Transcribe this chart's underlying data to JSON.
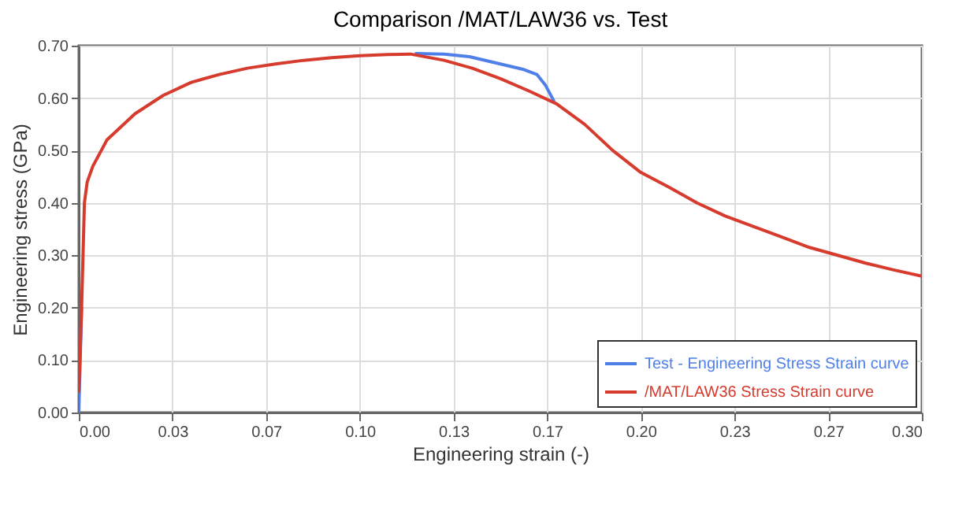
{
  "chart_data": {
    "type": "line",
    "title": "Comparison /MAT/LAW36 vs. Test",
    "xlabel": "Engineering strain (-)",
    "ylabel": "Engineering stress (GPa)",
    "xlim": [
      0,
      0.3
    ],
    "ylim": [
      0,
      0.7
    ],
    "xticks": [
      {
        "value": 0,
        "label": "0.00"
      },
      {
        "value": 0.03333,
        "label": "0.03"
      },
      {
        "value": 0.06667,
        "label": "0.07"
      },
      {
        "value": 0.1,
        "label": "0.10"
      },
      {
        "value": 0.13333,
        "label": "0.13"
      },
      {
        "value": 0.16667,
        "label": "0.17"
      },
      {
        "value": 0.2,
        "label": "0.20"
      },
      {
        "value": 0.23333,
        "label": "0.23"
      },
      {
        "value": 0.26667,
        "label": "0.27"
      },
      {
        "value": 0.3,
        "label": "0.30"
      }
    ],
    "yticks": [
      {
        "value": 0,
        "label": "0.00"
      },
      {
        "value": 0.1,
        "label": "0.10"
      },
      {
        "value": 0.2,
        "label": "0.20"
      },
      {
        "value": 0.3,
        "label": "0.30"
      },
      {
        "value": 0.4,
        "label": "0.40"
      },
      {
        "value": 0.5,
        "label": "0.50"
      },
      {
        "value": 0.6,
        "label": "0.60"
      },
      {
        "value": 0.7,
        "label": "0.70"
      }
    ],
    "grid": true,
    "legend": "bottom right",
    "marker": "none",
    "line_style": "solid",
    "series": [
      {
        "name": "Test - Engineering Stress Strain curve",
        "color": "#4f7fe8",
        "x": [
          0,
          0.001,
          0.002,
          0.003,
          0.005,
          0.01,
          0.02,
          0.03,
          0.04,
          0.05,
          0.06,
          0.07,
          0.08,
          0.09,
          0.1,
          0.11,
          0.12,
          0.13,
          0.139,
          0.15,
          0.158,
          0.163,
          0.166,
          0.169
        ],
        "values": [
          0,
          0.2,
          null,
          null,
          null,
          null,
          null,
          null,
          null,
          null,
          null,
          null,
          null,
          null,
          null,
          null,
          0.685,
          0.684,
          0.679,
          0.665,
          0.655,
          0.645,
          0.625,
          0.595
        ]
      },
      {
        "name": "/MAT/LAW36 Stress Strain curve",
        "color": "#d63b2e",
        "x": [
          0,
          0.001,
          0.002,
          0.003,
          0.005,
          0.01,
          0.02,
          0.03,
          0.04,
          0.05,
          0.06,
          0.07,
          0.08,
          0.09,
          0.1,
          0.11,
          0.118,
          0.13,
          0.14,
          0.15,
          0.16,
          0.17,
          0.18,
          0.19,
          0.2,
          0.21,
          0.22,
          0.23,
          0.24,
          0.25,
          0.26,
          0.27,
          0.28,
          0.29,
          0.3
        ],
        "values": [
          0.04,
          0.2,
          0.4,
          0.44,
          0.47,
          0.52,
          0.57,
          0.605,
          0.63,
          0.645,
          0.657,
          0.665,
          0.672,
          0.677,
          0.681,
          0.683,
          0.684,
          0.672,
          0.657,
          0.637,
          0.614,
          0.589,
          0.55,
          0.5,
          0.458,
          0.43,
          0.4,
          0.375,
          0.355,
          0.335,
          0.315,
          0.3,
          0.285,
          0.272,
          0.26
        ]
      }
    ]
  }
}
